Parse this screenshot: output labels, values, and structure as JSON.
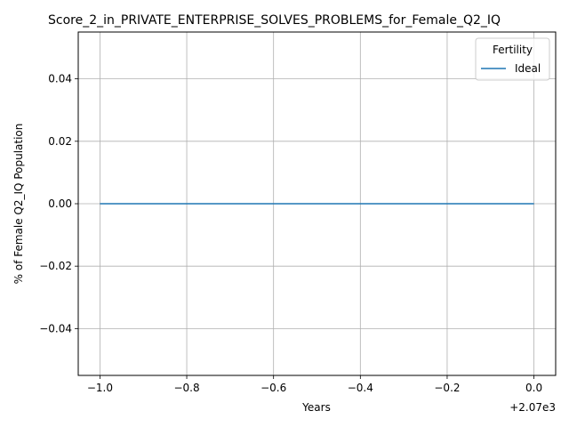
{
  "chart_data": {
    "type": "line",
    "title": "Score_2_in_PRIVATE_ENTERPRISE_SOLVES_PROBLEMS_for_Female_Q2_IQ",
    "xlabel": "Years",
    "ylabel": "% of Female Q2_IQ Population",
    "x_offset_label": "+2.07e3",
    "xlim": [
      -1.05,
      0.05
    ],
    "ylim": [
      -0.055,
      0.055
    ],
    "x_ticks": [
      -1.0,
      -0.8,
      -0.6,
      -0.4,
      -0.2,
      0.0
    ],
    "x_tick_labels": [
      "−1.0",
      "−0.8",
      "−0.6",
      "−0.4",
      "−0.2",
      "0.0"
    ],
    "y_ticks": [
      -0.04,
      -0.02,
      0.0,
      0.02,
      0.04
    ],
    "y_tick_labels": [
      "−0.04",
      "−0.02",
      "0.00",
      "0.02",
      "0.04"
    ],
    "grid": true,
    "legend": {
      "title": "Fertility",
      "position": "top-right"
    },
    "series": [
      {
        "name": "Ideal",
        "color": "#1f77b4",
        "x": [
          -1.0,
          0.0
        ],
        "y": [
          0.0,
          0.0
        ]
      }
    ]
  }
}
